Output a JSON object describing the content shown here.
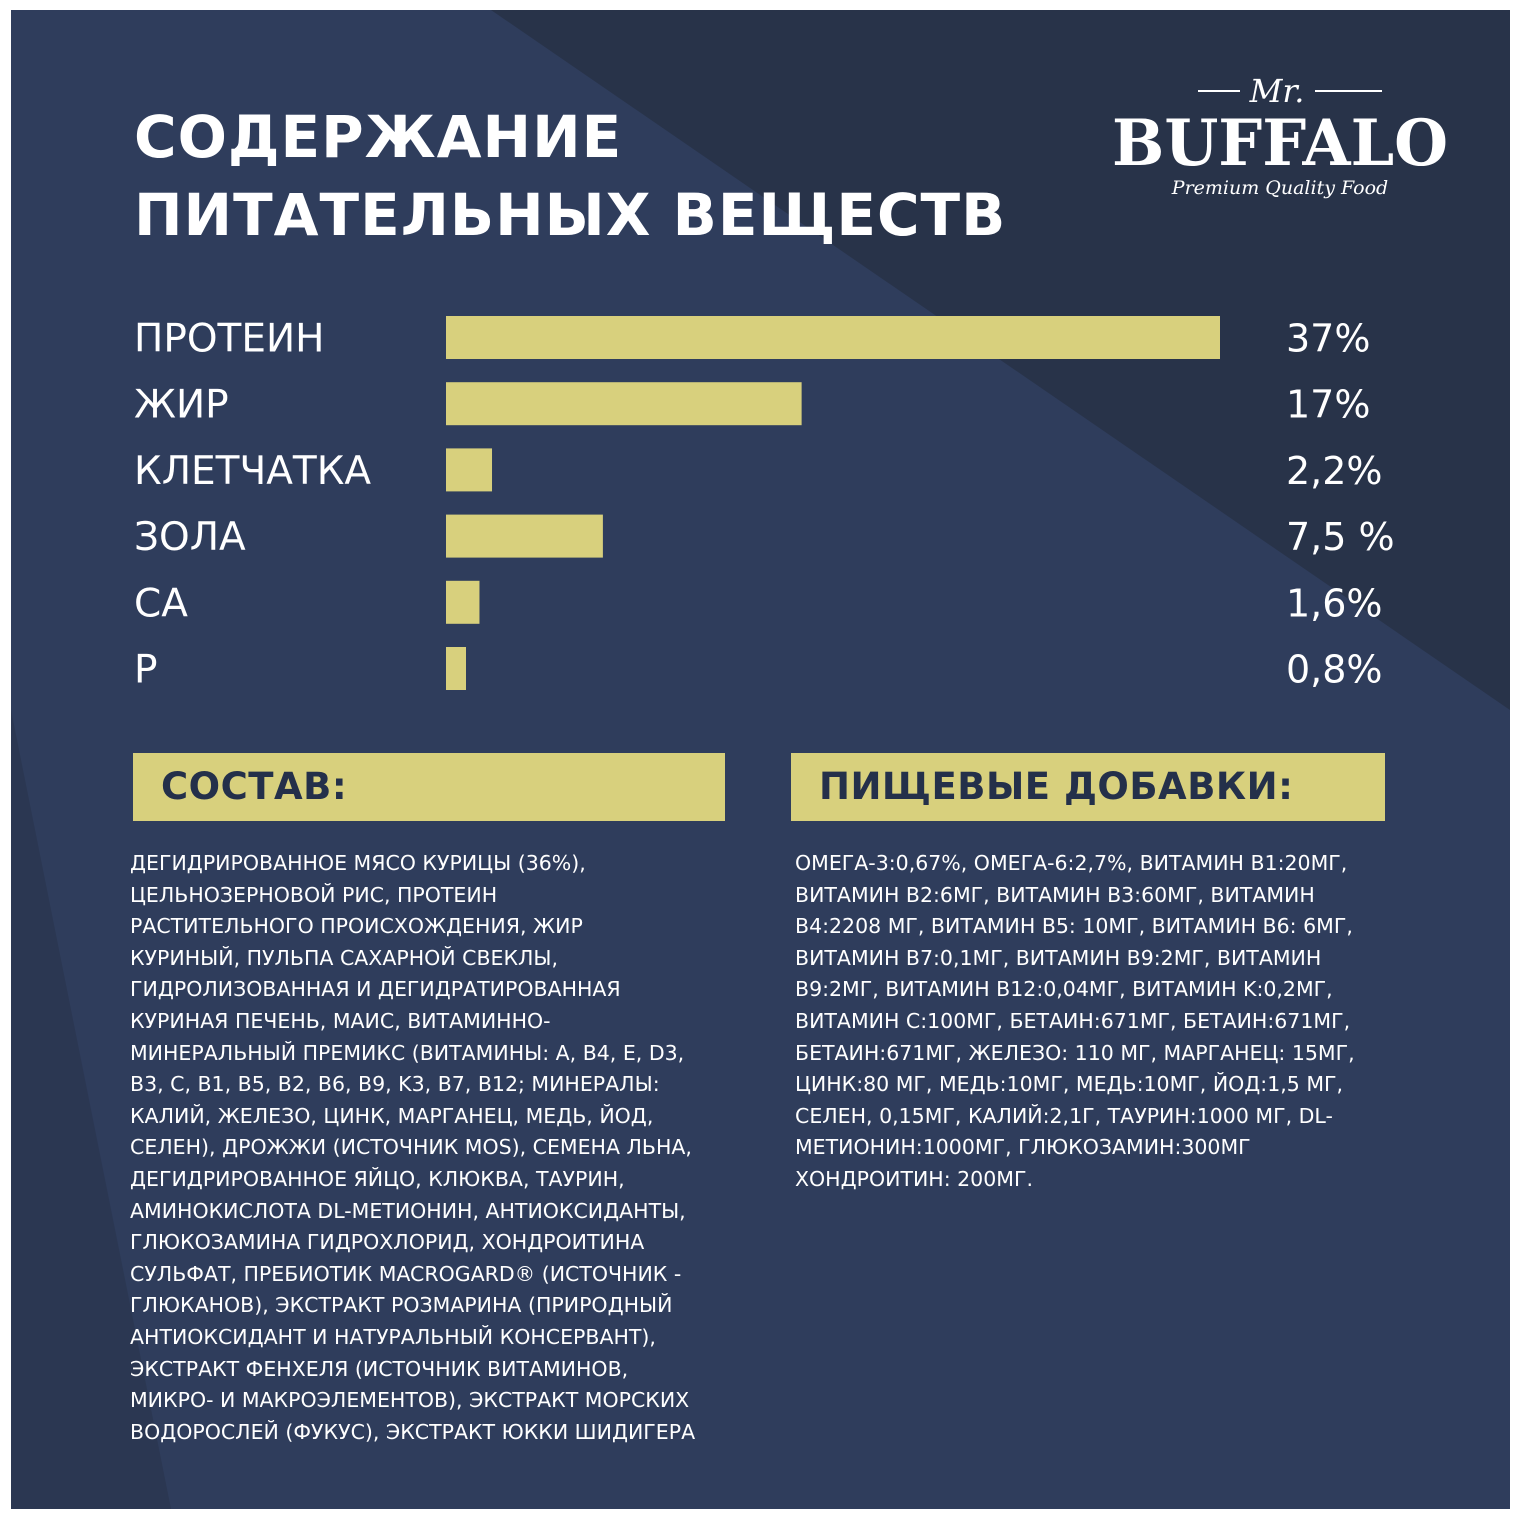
{
  "brand": {
    "mr": "Mr.",
    "name": "BUFFALO",
    "tagline": "Premium Quality Food"
  },
  "title": {
    "line1": "СОДЕРЖАНИЕ",
    "line2": "ПИТАТЕЛЬНЫХ ВЕЩЕСТВ"
  },
  "colors": {
    "background": "#313f5f",
    "background_dark": "#27324a",
    "bar": "#d8d07d",
    "text": "#ffffff",
    "header_text": "#24304a"
  },
  "chart_data": {
    "type": "bar",
    "orientation": "horizontal",
    "categories": [
      "ПРОТЕИН",
      "ЖИР",
      "КЛЕТЧАТКА",
      "ЗОЛА",
      "СА",
      "Р"
    ],
    "values": [
      37,
      17,
      2.2,
      7.5,
      1.6,
      0.8
    ],
    "value_labels": [
      "37%",
      "17%",
      "2,2%",
      "7,5 %",
      "1,6%",
      "0,8%"
    ],
    "unit": "%",
    "xlim": [
      0,
      37
    ],
    "grid": false
  },
  "composition": {
    "header": "СОСТАВ:",
    "lines": [
      "ДЕГИДРИРОВАННОЕ МЯСО КУРИЦЫ (36%),",
      "ЦЕЛЬНОЗЕРНОВОЙ РИС, ПРОТЕИН",
      "РАСТИТЕЛЬНОГО ПРОИСХОЖДЕНИЯ, ЖИР",
      "КУРИНЫЙ, ПУЛЬПА САХАРНОЙ СВЕКЛЫ,",
      "ГИДРОЛИЗОВАННАЯ И ДЕГИДРАТИРОВАННАЯ",
      "КУРИНАЯ ПЕЧЕНЬ, МАИС, ВИТАМИННО-",
      "МИНЕРАЛЬНЫЙ ПРЕМИКС (ВИТАМИНЫ: A, B4, E, D3,",
      "B3, C, B1, B5, B2, B6, B9, K3, B7, B12; МИНЕРАЛЫ:",
      "КАЛИЙ, ЖЕЛЕЗО, ЦИНК, МАРГАНЕЦ, МЕДЬ, ЙОД,",
      "СЕЛЕН), ДРОЖЖИ (ИСТОЧНИК MOS), СЕМЕНА ЛЬНА,",
      "ДЕГИДРИРОВАННОЕ ЯЙЦО, КЛЮКВА, ТАУРИН,",
      "АМИНОКИСЛОТА DL-МЕТИОНИН, АНТИОКСИДАНТЫ,",
      "ГЛЮКОЗАМИНА ГИДРОХЛОРИД, ХОНДРОИТИНА",
      "СУЛЬФАТ, ПРЕБИОТИК MACROGARD® (ИСТОЧНИК  -",
      "ГЛЮКАНОВ), ЭКСТРАКТ РОЗМАРИНА (ПРИРОДНЫЙ",
      "АНТИОКСИДАНТ И НАТУРАЛЬНЫЙ КОНСЕРВАНТ),",
      "ЭКСТРАКТ ФЕНХЕЛЯ (ИСТОЧНИК ВИТАМИНОВ,",
      "МИКРО- И МАКРОЭЛЕМЕНТОВ), ЭКСТРАКТ МОРСКИХ",
      "ВОДОРОСЛЕЙ (ФУКУС), ЭКСТРАКТ ЮККИ ШИДИГЕРА"
    ]
  },
  "additives": {
    "header": "ПИЩЕВЫЕ ДОБАВКИ:",
    "lines": [
      "ОМЕГА-3:0,67%, ОМЕГА-6:2,7%, ВИТАМИН B1:20МГ,",
      "ВИТАМИН B2:6МГ, ВИТАМИН B3:60МГ, ВИТАМИН",
      "B4:2208 МГ, ВИТАМИН B5: 10МГ, ВИТАМИН B6: 6МГ,",
      "ВИТАМИН B7:0,1МГ, ВИТАМИН B9:2МГ, ВИТАМИН",
      "B9:2МГ, ВИТАМИН B12:0,04МГ, ВИТАМИН K:0,2МГ,",
      "ВИТАМИН C:100МГ, БЕТАИН:671МГ, БЕТАИН:671МГ,",
      "БЕТАИН:671МГ, ЖЕЛЕЗО: 110 МГ, МАРГАНЕЦ: 15МГ,",
      "ЦИНК:80 МГ, МЕДЬ:10МГ, МЕДЬ:10МГ, ЙОД:1,5 МГ,",
      "СЕЛЕН, 0,15МГ, КАЛИЙ:2,1Г, ТАУРИН:1000 МГ, DL-",
      "МЕТИОНИН:1000МГ, ГЛЮКОЗАМИН:300МГ",
      "ХОНДРОИТИН: 200МГ."
    ]
  }
}
